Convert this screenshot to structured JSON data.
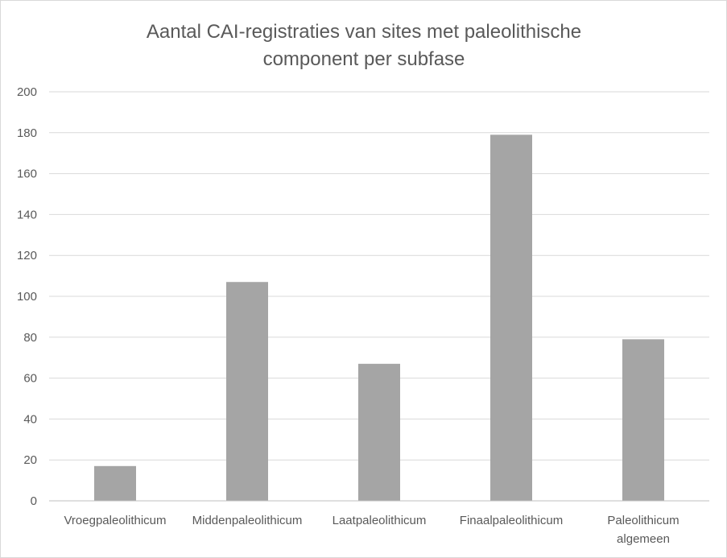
{
  "chart_data": {
    "type": "bar",
    "title": [
      "Aantal CAI-registraties van sites met paleolithische",
      "component per subfase"
    ],
    "xlabel": "",
    "ylabel": "",
    "categories": [
      [
        "Vroegpaleolithicum"
      ],
      [
        "Middenpaleolithicum"
      ],
      [
        "Laatpaleolithicum"
      ],
      [
        "Finaalpaleolithicum"
      ],
      [
        "Paleolithicum",
        "algemeen"
      ]
    ],
    "values": [
      17,
      107,
      67,
      179,
      79
    ],
    "ylim": [
      0,
      200
    ],
    "yticks": [
      "0",
      "20",
      "40",
      "60",
      "80",
      "100",
      "120",
      "140",
      "160",
      "180",
      "200"
    ],
    "grid": true,
    "legend": "none",
    "bar_color": "#a5a5a5"
  }
}
